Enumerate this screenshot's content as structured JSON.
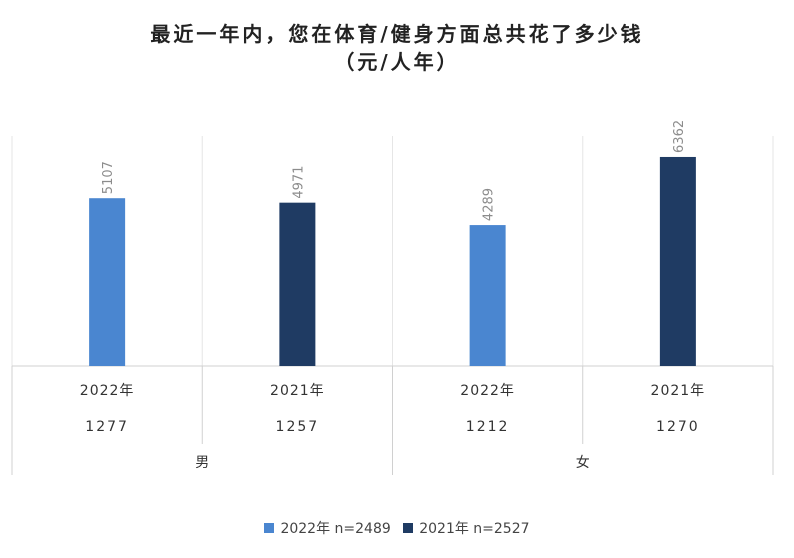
{
  "chart_data": {
    "type": "bar",
    "title": "最近一年内，您在体育/健身方面总共花了多少钱",
    "subtitle": "（元/人年）",
    "groups": [
      {
        "name": "男",
        "categories": [
          {
            "label": "2022年",
            "n": "1277",
            "series": 0,
            "value": 5107
          },
          {
            "label": "2021年",
            "n": "1257",
            "series": 1,
            "value": 4971
          }
        ]
      },
      {
        "name": "女",
        "categories": [
          {
            "label": "2022年",
            "n": "1212",
            "series": 0,
            "value": 4289
          },
          {
            "label": "2021年",
            "n": "1270",
            "series": 1,
            "value": 6362
          }
        ]
      }
    ],
    "series": [
      {
        "name": "2022年 n=2489",
        "color": "#4a86d0"
      },
      {
        "name": "2021年 n=2527",
        "color": "#1f3b63"
      }
    ],
    "ylim": [
      0,
      7000
    ],
    "grid": false,
    "legend": "bottom",
    "label_color": "#8c8c8c",
    "axis_color": "#d0d0d0"
  }
}
